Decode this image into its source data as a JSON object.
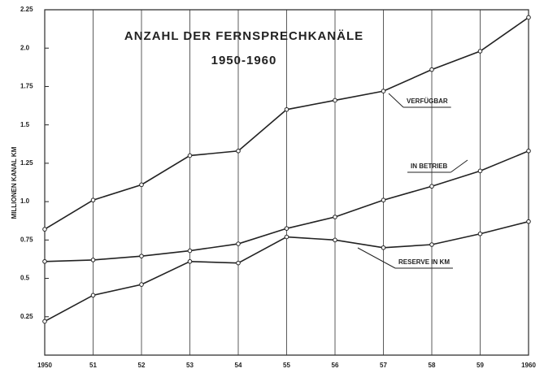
{
  "chart_data": {
    "type": "line",
    "title": "ANZAHL DER FERNSPRECHKANÄLE",
    "subtitle": "1950-1960",
    "y_label": "MILLIONEN KANAL KM",
    "categories": [
      "1950",
      "51",
      "52",
      "53",
      "54",
      "55",
      "56",
      "57",
      "58",
      "59",
      "1960"
    ],
    "series": [
      {
        "name": "VERFÜGBAR",
        "color": "#222222",
        "values": [
          0.82,
          1.01,
          1.11,
          1.3,
          1.33,
          1.6,
          1.66,
          1.72,
          1.86,
          1.98,
          2.2
        ]
      },
      {
        "name": "IN BETRIEB",
        "color": "#222222",
        "values": [
          0.61,
          0.62,
          0.645,
          0.68,
          0.725,
          0.825,
          0.9,
          1.01,
          1.1,
          1.2,
          1.33
        ]
      },
      {
        "name": "RESERVE IN KM",
        "color": "#222222",
        "values": [
          0.22,
          0.39,
          0.46,
          0.61,
          0.6,
          0.77,
          0.75,
          0.7,
          0.72,
          0.79,
          0.87
        ]
      }
    ],
    "ylim": [
      0,
      2.25
    ],
    "yticks": [
      0.25,
      0.5,
      0.75,
      {
        "value": 1,
        "label": "1.0"
      },
      1.25,
      1.5,
      1.75,
      {
        "value": 2,
        "label": "2.0"
      },
      2.25
    ],
    "grid": "x"
  }
}
